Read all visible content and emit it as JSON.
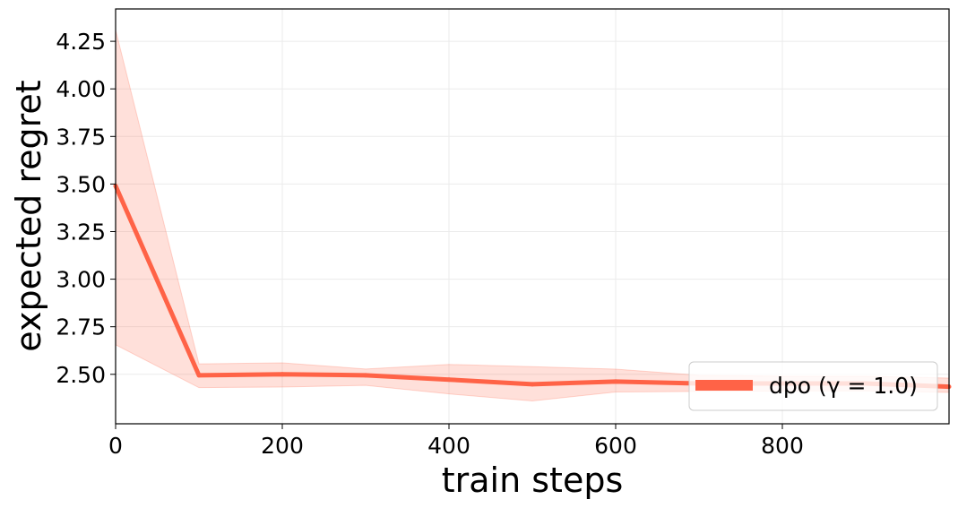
{
  "chart_data": {
    "type": "line",
    "title": "",
    "xlabel": "train steps",
    "ylabel": "expected regret",
    "xlim": [
      0,
      1000
    ],
    "ylim": [
      2.24,
      4.42
    ],
    "xticks": [
      0,
      200,
      400,
      600,
      800
    ],
    "xtick_labels": [
      "0",
      "200",
      "400",
      "600",
      "800"
    ],
    "yticks": [
      2.5,
      2.75,
      3.0,
      3.25,
      3.5,
      3.75,
      4.0,
      4.25
    ],
    "ytick_labels": [
      "2.50",
      "2.75",
      "3.00",
      "3.25",
      "3.50",
      "3.75",
      "4.00",
      "4.25"
    ],
    "grid": true,
    "legend_position": "lower-right",
    "series": [
      {
        "name": "dpo (γ = 1.0)",
        "color": "#ff6347",
        "x": [
          0,
          100,
          200,
          300,
          400,
          500,
          600,
          700,
          800,
          900,
          1000
        ],
        "y": [
          3.49,
          2.495,
          2.5,
          2.495,
          2.472,
          2.448,
          2.462,
          2.452,
          2.452,
          2.452,
          2.435
        ],
        "lower": [
          2.655,
          2.43,
          2.433,
          2.442,
          2.397,
          2.36,
          2.407,
          2.41,
          2.412,
          2.413,
          2.405
        ],
        "upper": [
          4.31,
          2.555,
          2.56,
          2.528,
          2.552,
          2.54,
          2.527,
          2.495,
          2.49,
          2.49,
          2.48
        ]
      }
    ]
  }
}
